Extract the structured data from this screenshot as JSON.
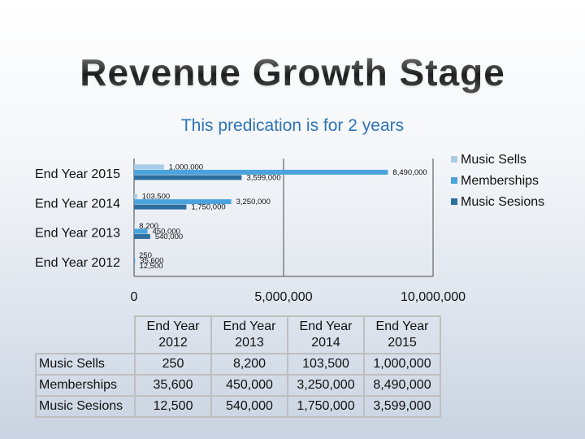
{
  "slide": {
    "title": "Revenue Growth Stage",
    "subtitle": "This predication is for 2 years"
  },
  "chart_data": {
    "type": "bar",
    "orientation": "horizontal",
    "categories": [
      "End Year 2012",
      "End Year 2013",
      "End Year 2014",
      "End Year 2015"
    ],
    "series": [
      {
        "name": "Music Sells",
        "color": "#a9cbe6",
        "values": [
          250,
          8200,
          103500,
          1000000
        ],
        "labels": [
          "250",
          "8,200",
          "103,500",
          "1,000,000"
        ]
      },
      {
        "name": "Memberships",
        "color": "#4aa3dc",
        "values": [
          35600,
          450000,
          3250000,
          8490000
        ],
        "labels": [
          "35,600",
          "450,000",
          "3,250,000",
          "8,490,000"
        ]
      },
      {
        "name": "Music Sesions",
        "color": "#2d6f9f",
        "values": [
          12500,
          540000,
          1750000,
          3599000
        ],
        "labels": [
          "12,500",
          "540,000",
          "1,750,000",
          "3,599,000"
        ]
      }
    ],
    "xlim": [
      0,
      10000000
    ],
    "xticks": [
      0,
      5000000,
      10000000
    ],
    "xtick_labels": [
      "0",
      "5,000,000",
      "10,000,000"
    ],
    "grid": "vertical",
    "legend": "right"
  },
  "table": {
    "headers": [
      "End Year\n2012",
      "End Year\n2013",
      "End Year\n2014",
      "End Year\n2015"
    ],
    "rows": [
      {
        "label": "Music Sells",
        "cells": [
          "250",
          "8,200",
          "103,500",
          "1,000,000"
        ]
      },
      {
        "label": "Memberships",
        "cells": [
          "35,600",
          "450,000",
          "3,250,000",
          "8,490,000"
        ]
      },
      {
        "label": "Music Sesions",
        "cells": [
          "12,500",
          "540,000",
          "1,750,000",
          "3,599,000"
        ]
      }
    ]
  }
}
